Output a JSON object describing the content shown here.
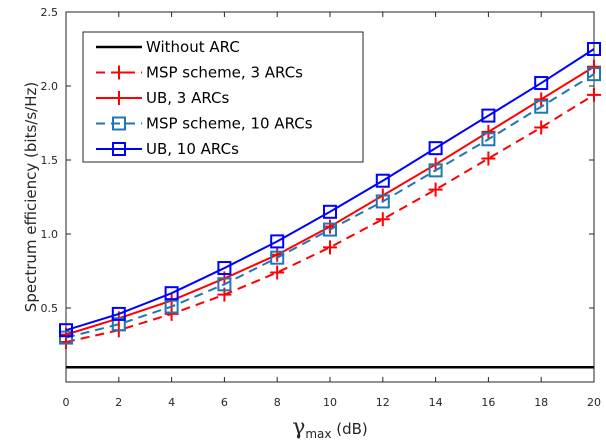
{
  "chart_data": {
    "type": "line",
    "xlabel_symbol": "γ",
    "xlabel_subscript": "max",
    "xlabel_unit": " (dB)",
    "ylabel": "Spectrum efficiency (bits/s/Hz)",
    "xlim": [
      0,
      20
    ],
    "ylim": [
      0,
      2.5
    ],
    "xticks": [
      0,
      2,
      4,
      6,
      8,
      10,
      12,
      14,
      16,
      18,
      20
    ],
    "yticks": [
      0.5,
      1.0,
      1.5,
      2.0,
      2.5
    ],
    "ytick_labels": [
      "0.5",
      "1.0",
      "1.5",
      "2.0",
      "2.5"
    ],
    "grid": false,
    "legend_position": "top-left",
    "x": [
      0,
      2,
      4,
      6,
      8,
      10,
      12,
      14,
      16,
      18,
      20
    ],
    "series": [
      {
        "name": "Without ARC",
        "color": "#000000",
        "dash": "solid",
        "marker": "none",
        "values": [
          0.1,
          0.1,
          0.1,
          0.1,
          0.1,
          0.1,
          0.1,
          0.1,
          0.1,
          0.1,
          0.1
        ]
      },
      {
        "name": "MSP scheme, 3 ARCs",
        "color": "#ff0000",
        "dash": "dashed",
        "marker": "plus",
        "values": [
          0.27,
          0.35,
          0.46,
          0.59,
          0.74,
          0.91,
          1.1,
          1.3,
          1.51,
          1.72,
          1.94
        ]
      },
      {
        "name": "UB, 3 ARCs",
        "color": "#ff0000",
        "dash": "solid",
        "marker": "plus",
        "values": [
          0.32,
          0.43,
          0.55,
          0.7,
          0.86,
          1.05,
          1.26,
          1.47,
          1.69,
          1.91,
          2.13
        ]
      },
      {
        "name": "MSP scheme, 10 ARCs",
        "color": "#1f77b4",
        "dash": "dashed",
        "marker": "square",
        "values": [
          0.3,
          0.39,
          0.51,
          0.66,
          0.84,
          1.03,
          1.22,
          1.43,
          1.64,
          1.86,
          2.08
        ]
      },
      {
        "name": "UB, 10 ARCs",
        "color": "#0000ff",
        "dash": "solid",
        "marker": "square",
        "values": [
          0.35,
          0.46,
          0.6,
          0.77,
          0.95,
          1.15,
          1.36,
          1.58,
          1.8,
          2.02,
          2.25
        ]
      }
    ]
  }
}
